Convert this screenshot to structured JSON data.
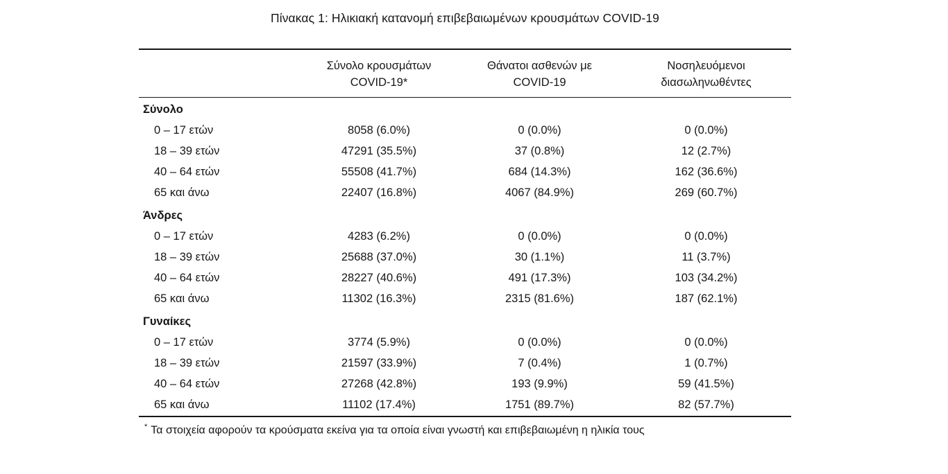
{
  "title": "Πίνακας 1: Ηλικιακή κατανομή επιβεβαιωμένων κρουσμάτων COVID-19",
  "table": {
    "headers": [
      {
        "line1": "Σύνολο κρουσμάτων",
        "line2": "COVID-19*"
      },
      {
        "line1": "Θάνατοι ασθενών με",
        "line2": "COVID-19"
      },
      {
        "line1": "Νοσηλευόμενοι",
        "line2": "διασωληνωθέντες"
      }
    ],
    "sections": [
      {
        "label": "Σύνολο",
        "rows": [
          {
            "age": "0 – 17 ετών",
            "cases": "8058 (6.0%)",
            "deaths": "0 (0.0%)",
            "intubated": "0 (0.0%)"
          },
          {
            "age": "18 – 39 ετών",
            "cases": "47291 (35.5%)",
            "deaths": "37 (0.8%)",
            "intubated": "12 (2.7%)"
          },
          {
            "age": "40 – 64 ετών",
            "cases": "55508 (41.7%)",
            "deaths": "684 (14.3%)",
            "intubated": "162 (36.6%)"
          },
          {
            "age": "65 και άνω",
            "cases": "22407 (16.8%)",
            "deaths": "4067 (84.9%)",
            "intubated": "269 (60.7%)"
          }
        ]
      },
      {
        "label": "Άνδρες",
        "rows": [
          {
            "age": "0 – 17 ετών",
            "cases": "4283 (6.2%)",
            "deaths": "0 (0.0%)",
            "intubated": "0 (0.0%)"
          },
          {
            "age": "18 – 39 ετών",
            "cases": "25688 (37.0%)",
            "deaths": "30 (1.1%)",
            "intubated": "11 (3.7%)"
          },
          {
            "age": "40 – 64 ετών",
            "cases": "28227 (40.6%)",
            "deaths": "491 (17.3%)",
            "intubated": "103 (34.2%)"
          },
          {
            "age": "65 και άνω",
            "cases": "11302 (16.3%)",
            "deaths": "2315 (81.6%)",
            "intubated": "187 (62.1%)"
          }
        ]
      },
      {
        "label": "Γυναίκες",
        "rows": [
          {
            "age": "0 – 17 ετών",
            "cases": "3774 (5.9%)",
            "deaths": "0 (0.0%)",
            "intubated": "0 (0.0%)"
          },
          {
            "age": "18 – 39 ετών",
            "cases": "21597 (33.9%)",
            "deaths": "7 (0.4%)",
            "intubated": "1 (0.7%)"
          },
          {
            "age": "40 – 64 ετών",
            "cases": "27268 (42.8%)",
            "deaths": "193 (9.9%)",
            "intubated": "59 (41.5%)"
          },
          {
            "age": "65 και άνω",
            "cases": "11102 (17.4%)",
            "deaths": "1751 (89.7%)",
            "intubated": "82 (57.7%)"
          }
        ]
      }
    ]
  },
  "footnote": {
    "marker": "*",
    "text": "Τα στοιχεία αφορούν τα κρούσματα εκείνα για τα οποία είναι γνωστή και επιβεβαιωμένη η ηλικία τους"
  }
}
